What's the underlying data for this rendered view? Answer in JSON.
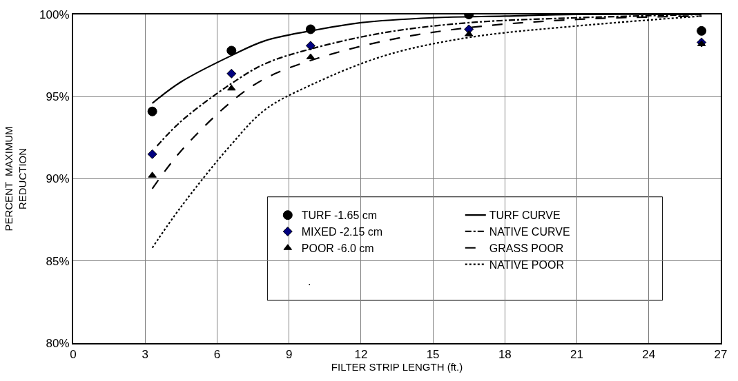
{
  "chart_data": {
    "type": "scatter",
    "xlabel": "FILTER STRIP LENGTH (ft.)",
    "ylabel": "PERCENT  MAXIMUM\nREDUCTION",
    "x": [
      3.3,
      6.6,
      9.9,
      16.5,
      26.2
    ],
    "series": [
      {
        "name": "TURF -1.65 cm",
        "marker": "circle",
        "color": "#000000",
        "values": [
          94.1,
          97.8,
          99.1,
          100,
          99.0
        ]
      },
      {
        "name": "TURF CURVE",
        "type": "line",
        "marker": "none",
        "line_style": "solid",
        "color": "#000000",
        "x": [
          3.3,
          4.5,
          6.6,
          8,
          9.9,
          12,
          15,
          18,
          21,
          26.2
        ],
        "values": [
          94.6,
          95.9,
          97.5,
          98.4,
          99.0,
          99.5,
          99.8,
          99.9,
          100,
          100
        ]
      },
      {
        "name": "MIXED -2.15 cm",
        "marker": "diamond",
        "color": "#000080",
        "values": [
          91.5,
          96.4,
          98.1,
          99.1,
          98.3
        ]
      },
      {
        "name": "NATIVE CURVE",
        "type": "line",
        "marker": "none",
        "line_style": "dashdot",
        "color": "#000000",
        "x": [
          3.5,
          4.5,
          6.6,
          8,
          9.9,
          13,
          16.5,
          21,
          26.2
        ],
        "values": [
          92.0,
          93.5,
          95.8,
          97.0,
          97.9,
          98.9,
          99.5,
          99.8,
          100
        ]
      },
      {
        "name": "POOR -6.0 cm",
        "marker": "triangle",
        "color": "#000000",
        "values": [
          90.2,
          95.5,
          97.4,
          98.8,
          98.2
        ]
      },
      {
        "name": "GRASS POOR",
        "type": "line",
        "marker": "none",
        "line_style": "longdash",
        "color": "#000000",
        "x": [
          3.3,
          4.5,
          6.6,
          8,
          9.9,
          13,
          16.5,
          21,
          26.2
        ],
        "values": [
          89.4,
          91.7,
          94.7,
          96.1,
          97.2,
          98.4,
          99.2,
          99.7,
          99.9
        ]
      },
      {
        "name": "NATIVE POOR",
        "type": "line",
        "marker": "none",
        "line_style": "dotted",
        "color": "#000000",
        "x": [
          3.3,
          4.5,
          6.6,
          8,
          9.9,
          13,
          16.5,
          21,
          26.2
        ],
        "values": [
          85.8,
          88.3,
          92.1,
          94.2,
          95.7,
          97.5,
          98.6,
          99.3,
          99.9
        ]
      }
    ],
    "annotations": [
      "."
    ],
    "xlim": [
      0,
      27
    ],
    "xticks": [
      0,
      3,
      6,
      9,
      12,
      15,
      18,
      21,
      24,
      27
    ],
    "ylim": [
      80,
      100
    ],
    "yticks": [
      {
        "value": 80,
        "label": "80%"
      },
      {
        "value": 85,
        "label": "85%"
      },
      {
        "value": 90,
        "label": "90%"
      },
      {
        "value": 95,
        "label": "95%"
      },
      {
        "value": 100,
        "label": "100%"
      }
    ],
    "grid": true,
    "legend": "bottom right"
  }
}
